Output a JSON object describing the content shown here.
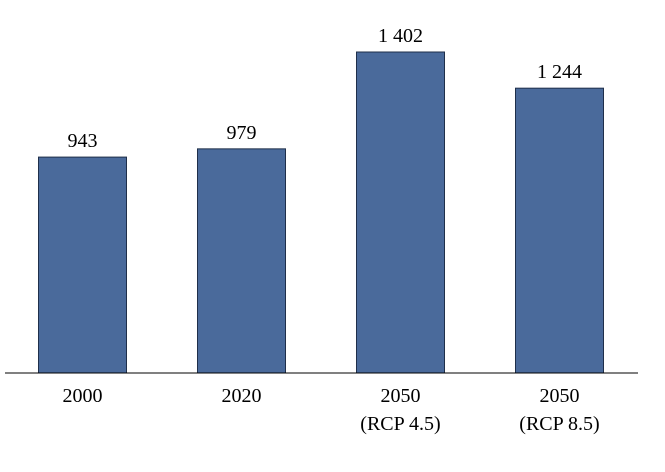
{
  "chart_data": {
    "type": "bar",
    "categories": [
      "2000",
      "2020",
      "2050\n(RCP 4.5)",
      "2050\n(RCP 8.5)"
    ],
    "values": [
      943,
      979,
      1402,
      1244
    ],
    "value_labels": [
      "943",
      "979",
      "1 402",
      "1 244"
    ],
    "color": "#4a6a9b"
  }
}
